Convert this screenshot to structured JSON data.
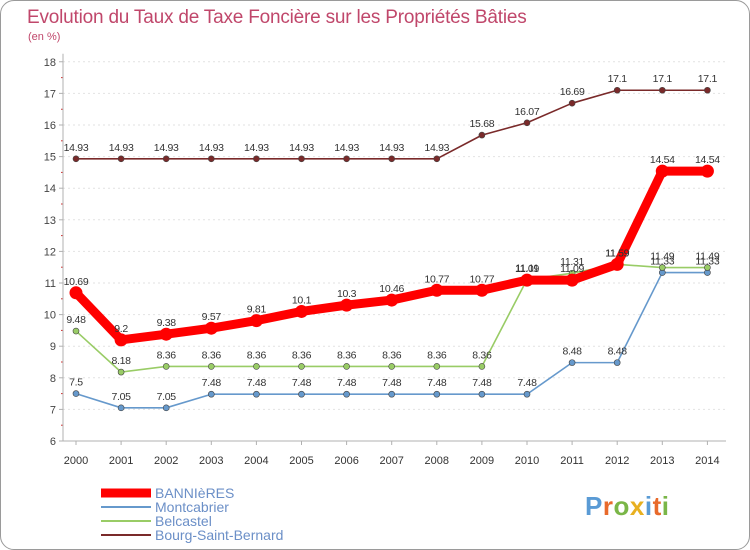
{
  "header": {
    "title": "Evolution du Taux de Taxe Foncière sur les Propriétés Bâties",
    "unit": "(en %)"
  },
  "logo": {
    "text": "Proxiti",
    "colors": [
      "#5a9bd5",
      "#e86a2b",
      "#7ab648",
      "#e8b020",
      "#5a9bd5",
      "#e86a2b",
      "#7ab648"
    ]
  },
  "chart_data": {
    "type": "line",
    "title": "Evolution du Taux de Taxe Foncière sur les Propriétés Bâties",
    "ylabel": "(en %)",
    "xlabel": "",
    "x": [
      "2000",
      "2001",
      "2002",
      "2003",
      "2004",
      "2005",
      "2006",
      "2007",
      "2008",
      "2009",
      "2010",
      "2011",
      "2012",
      "2013",
      "2014"
    ],
    "ylim": [
      6,
      18
    ],
    "yticks": [
      "6",
      "7",
      "8",
      "9",
      "10",
      "11",
      "12",
      "13",
      "14",
      "15",
      "16",
      "17",
      "18"
    ],
    "legend_position": "bottom-left",
    "series": [
      {
        "name": "BANNIèRES",
        "color": "#ff0000",
        "values": [
          10.69,
          9.2,
          9.38,
          9.57,
          9.81,
          10.1,
          10.3,
          10.46,
          10.77,
          10.77,
          11.09,
          11.09,
          11.59,
          14.54,
          14.54
        ],
        "labels": [
          "10.69",
          "9.2",
          "9.38",
          "9.57",
          "9.81",
          "10.1",
          "10.3",
          "10.46",
          "10.77",
          "10.77",
          "11.09",
          "11.09",
          "11.59",
          "14.54",
          "14.54"
        ]
      },
      {
        "name": "Montcabrier",
        "color": "#6699cc",
        "values": [
          7.5,
          7.05,
          7.05,
          7.48,
          7.48,
          7.48,
          7.48,
          7.48,
          7.48,
          7.48,
          7.48,
          8.48,
          8.48,
          11.33,
          11.33
        ],
        "labels": [
          "7.5",
          "7.05",
          "7.05",
          "7.48",
          "7.48",
          "7.48",
          "7.48",
          "7.48",
          "7.48",
          "7.48",
          "7.48",
          "8.48",
          "8.48",
          "11.33",
          "11.33"
        ]
      },
      {
        "name": "Belcastel",
        "color": "#99cc66",
        "values": [
          9.48,
          8.18,
          8.36,
          8.36,
          8.36,
          8.36,
          8.36,
          8.36,
          8.36,
          8.36,
          11.11,
          11.31,
          11.59,
          11.49,
          11.49
        ],
        "labels": [
          "9.48",
          "8.18",
          "8.36",
          "8.36",
          "8.36",
          "8.36",
          "8.36",
          "8.36",
          "8.36",
          "8.36",
          "11.11",
          "11.31",
          "11.59",
          "11.49",
          "11.49"
        ]
      },
      {
        "name": "Bourg-Saint-Bernard",
        "color": "#7a2a2a",
        "values": [
          14.93,
          14.93,
          14.93,
          14.93,
          14.93,
          14.93,
          14.93,
          14.93,
          14.93,
          15.68,
          16.07,
          16.69,
          17.1,
          17.1,
          17.1
        ],
        "labels": [
          "14.93",
          "14.93",
          "14.93",
          "14.93",
          "14.93",
          "14.93",
          "14.93",
          "14.93",
          "14.93",
          "15.68",
          "16.07",
          "16.69",
          "17.1",
          "17.1",
          "17.1"
        ]
      }
    ]
  }
}
